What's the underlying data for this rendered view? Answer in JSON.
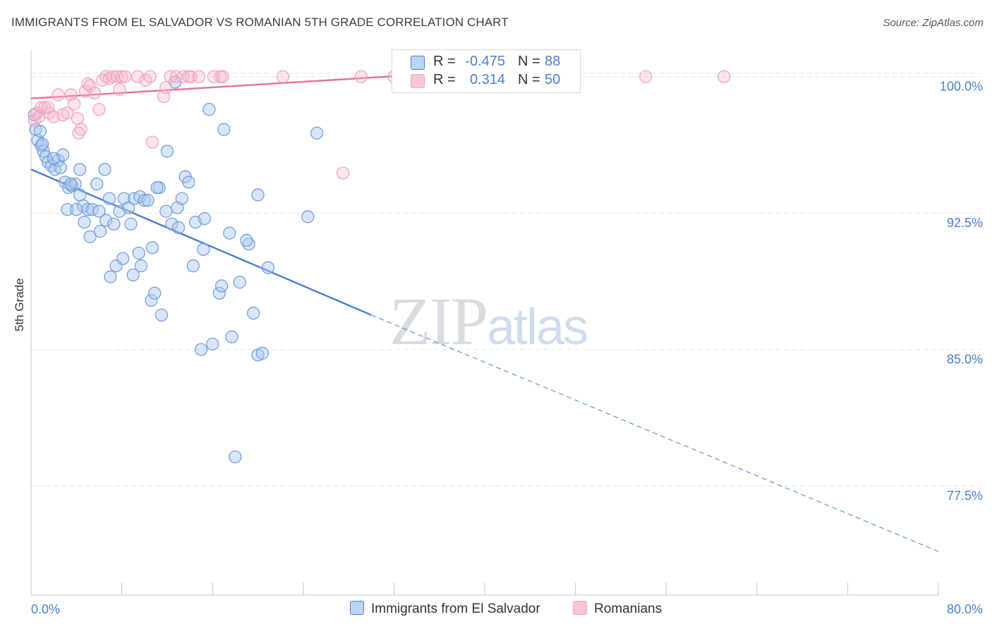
{
  "title": "IMMIGRANTS FROM EL SALVADOR VS ROMANIAN 5TH GRADE CORRELATION CHART",
  "source": "Source: ZipAtlas.com",
  "watermark": {
    "zip": "ZIP",
    "atlas": "atlas"
  },
  "colors": {
    "blue": "#4a7fd0",
    "blue_fill": "#a9c7ef",
    "pink": "#e86f99",
    "pink_fill": "#f6b8cc",
    "grid": "#e3e3e3"
  },
  "legend": {
    "rows": [
      {
        "r_label": "R =",
        "r_value": "-0.475",
        "n_label": "N =",
        "n_value": "88"
      },
      {
        "r_label": "R =",
        "r_value": "0.314",
        "n_label": "N =",
        "n_value": "50"
      }
    ]
  },
  "chart_data": {
    "type": "scatter",
    "title": "IMMIGRANTS FROM EL SALVADOR VS ROMANIAN 5TH GRADE CORRELATION CHART",
    "xlabel": "",
    "ylabel": "5th Grade",
    "xlim": [
      0,
      80
    ],
    "ylim": [
      71.5,
      101.5
    ],
    "x_tick_labels": [
      "0.0%",
      "80.0%"
    ],
    "y_ticks": [
      77.5,
      85.0,
      92.5,
      100.0
    ],
    "y_tick_labels": [
      "77.5%",
      "85.0%",
      "92.5%",
      "100.0%"
    ],
    "grid": true,
    "legend_position": "bottom",
    "series": [
      {
        "name": "Immigrants from El Salvador",
        "color": "#4a7fd0",
        "trend": {
          "x0": 0,
          "y0": 94.9,
          "x1": 30,
          "y1": 86.9,
          "dashed_to_x": 80,
          "dashed_to_y": 73.9
        },
        "points": [
          [
            0.3,
            97.9
          ],
          [
            0.4,
            97.1
          ],
          [
            0.6,
            96.5
          ],
          [
            0.9,
            96.2
          ],
          [
            1.1,
            95.9
          ],
          [
            1.3,
            95.6
          ],
          [
            1.5,
            95.3
          ],
          [
            1.8,
            95.1
          ],
          [
            2.1,
            94.9
          ],
          [
            2.4,
            95.4
          ],
          [
            2.8,
            95.7
          ],
          [
            3.0,
            94.2
          ],
          [
            3.3,
            93.9
          ],
          [
            3.6,
            94.0
          ],
          [
            3.9,
            94.1
          ],
          [
            4.3,
            93.5
          ],
          [
            4.6,
            92.9
          ],
          [
            5.0,
            92.7
          ],
          [
            3.2,
            92.7
          ],
          [
            4.0,
            92.7
          ],
          [
            5.4,
            92.7
          ],
          [
            6.0,
            92.6
          ],
          [
            6.6,
            92.1
          ],
          [
            4.7,
            92.0
          ],
          [
            6.9,
            93.3
          ],
          [
            7.8,
            92.6
          ],
          [
            8.2,
            93.3
          ],
          [
            8.6,
            92.8
          ],
          [
            9.1,
            93.3
          ],
          [
            9.6,
            93.4
          ],
          [
            10.0,
            93.2
          ],
          [
            10.3,
            93.2
          ],
          [
            11.3,
            93.9
          ],
          [
            11.9,
            92.6
          ],
          [
            12.4,
            91.9
          ],
          [
            12.9,
            92.8
          ],
          [
            13.3,
            93.3
          ],
          [
            13.6,
            94.5
          ],
          [
            13.9,
            94.2
          ],
          [
            14.5,
            92.0
          ],
          [
            15.3,
            92.2
          ],
          [
            5.2,
            91.2
          ],
          [
            6.1,
            91.5
          ],
          [
            7.3,
            91.9
          ],
          [
            8.8,
            91.9
          ],
          [
            9.5,
            90.3
          ],
          [
            10.7,
            90.6
          ],
          [
            11.1,
            93.9
          ],
          [
            13.0,
            91.7
          ],
          [
            15.2,
            90.5
          ],
          [
            7.0,
            89.0
          ],
          [
            7.5,
            89.6
          ],
          [
            8.1,
            90.0
          ],
          [
            9.0,
            89.1
          ],
          [
            9.7,
            89.6
          ],
          [
            10.6,
            87.7
          ],
          [
            10.9,
            88.1
          ],
          [
            11.5,
            86.9
          ],
          [
            14.3,
            89.6
          ],
          [
            16.6,
            88.1
          ],
          [
            16.8,
            88.5
          ],
          [
            17.5,
            91.4
          ],
          [
            18.4,
            88.7
          ],
          [
            19.2,
            90.8
          ],
          [
            19.6,
            87.0
          ],
          [
            20.9,
            89.5
          ],
          [
            19.0,
            91.0
          ],
          [
            20.0,
            84.7
          ],
          [
            20.4,
            84.8
          ],
          [
            15.0,
            85.0
          ],
          [
            16.0,
            85.3
          ],
          [
            17.7,
            85.7
          ],
          [
            17.0,
            97.1
          ],
          [
            15.7,
            98.2
          ],
          [
            12.0,
            95.9
          ],
          [
            6.5,
            94.9
          ],
          [
            12.7,
            99.7
          ],
          [
            25.2,
            96.9
          ],
          [
            24.4,
            92.3
          ],
          [
            20.0,
            93.5
          ],
          [
            4.3,
            94.9
          ],
          [
            3.5,
            94.1
          ],
          [
            2.0,
            95.5
          ],
          [
            1.0,
            96.3
          ],
          [
            5.8,
            94.1
          ],
          [
            0.8,
            97.0
          ],
          [
            18.0,
            79.1
          ],
          [
            2.6,
            95.0
          ]
        ]
      },
      {
        "name": "Romanians",
        "color": "#e86f99",
        "trend": {
          "x0": 0,
          "y0": 98.8,
          "x1": 34,
          "y1": 100.1
        },
        "points": [
          [
            0.3,
            97.6
          ],
          [
            0.5,
            98.0
          ],
          [
            0.7,
            97.8
          ],
          [
            0.9,
            98.3
          ],
          [
            1.2,
            98.3
          ],
          [
            1.6,
            98.0
          ],
          [
            2.0,
            97.8
          ],
          [
            2.4,
            99.0
          ],
          [
            2.8,
            97.9
          ],
          [
            3.2,
            98.0
          ],
          [
            3.5,
            99.0
          ],
          [
            3.8,
            98.5
          ],
          [
            4.1,
            97.7
          ],
          [
            4.4,
            97.1
          ],
          [
            4.8,
            99.2
          ],
          [
            5.2,
            99.5
          ],
          [
            5.6,
            99.1
          ],
          [
            6.0,
            98.2
          ],
          [
            6.3,
            99.8
          ],
          [
            6.6,
            100.0
          ],
          [
            6.9,
            99.9
          ],
          [
            7.2,
            100.0
          ],
          [
            7.6,
            100.0
          ],
          [
            7.8,
            99.3
          ],
          [
            8.0,
            100.0
          ],
          [
            8.3,
            100.0
          ],
          [
            9.4,
            100.0
          ],
          [
            10.1,
            99.8
          ],
          [
            10.5,
            100.0
          ],
          [
            10.7,
            96.4
          ],
          [
            11.7,
            98.9
          ],
          [
            11.9,
            99.4
          ],
          [
            12.3,
            100.0
          ],
          [
            12.8,
            100.0
          ],
          [
            13.4,
            100.0
          ],
          [
            13.9,
            100.0
          ],
          [
            14.1,
            100.0
          ],
          [
            14.8,
            100.0
          ],
          [
            16.1,
            100.0
          ],
          [
            16.7,
            100.0
          ],
          [
            16.9,
            100.0
          ],
          [
            22.2,
            100.0
          ],
          [
            29.1,
            100.0
          ],
          [
            32.0,
            100.0
          ],
          [
            54.2,
            100.0
          ],
          [
            61.1,
            100.0
          ],
          [
            27.5,
            94.7
          ],
          [
            4.2,
            96.9
          ],
          [
            5.0,
            99.6
          ],
          [
            1.5,
            98.3
          ]
        ]
      }
    ]
  }
}
